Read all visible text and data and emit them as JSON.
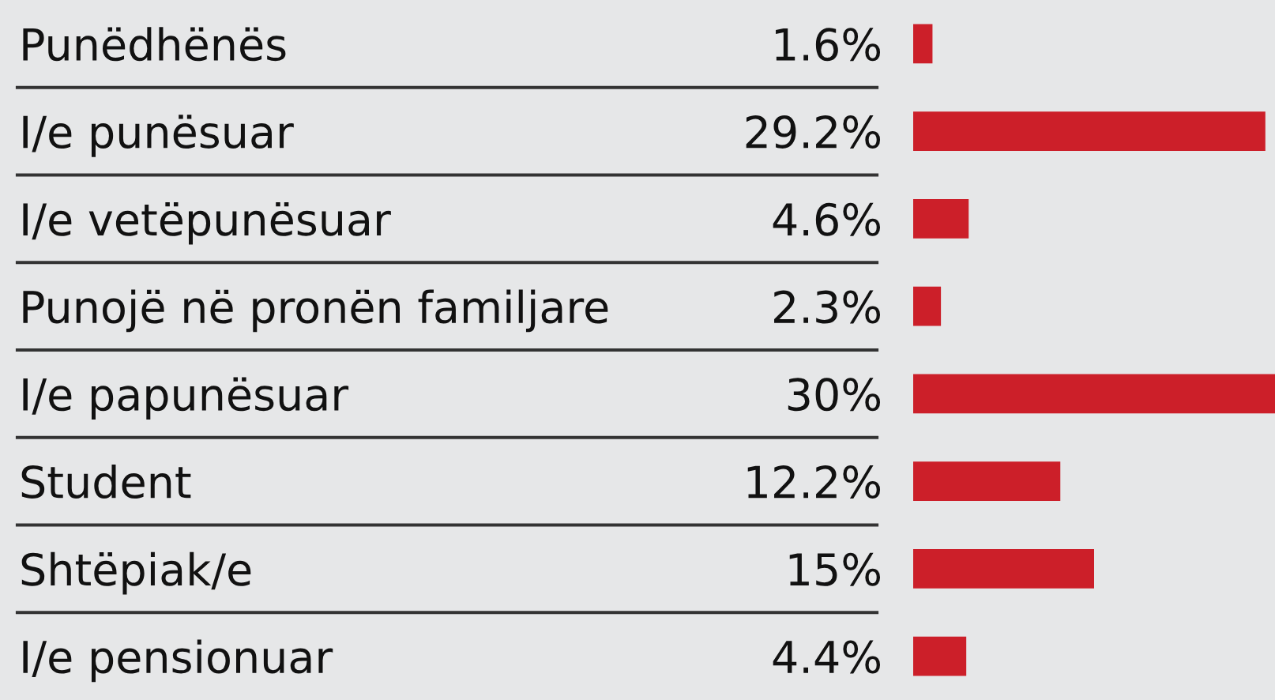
{
  "chart_data": {
    "type": "bar",
    "orientation": "horizontal",
    "categories": [
      "Punëdhënës",
      "I/e punësuar",
      "I/e vetëpunësuar",
      "Punojë në pronën familjare",
      "I/e papunësuar",
      "Student",
      "Shtëpiak/e",
      "I/e pensionuar"
    ],
    "values": [
      1.6,
      29.2,
      4.6,
      2.3,
      30,
      12.2,
      15,
      4.4
    ],
    "value_labels": [
      "1.6%",
      "29.2%",
      "4.6%",
      "2.3%",
      "30%",
      "12.2%",
      "15%",
      "4.4%"
    ],
    "color": "#cc1f29"
  }
}
